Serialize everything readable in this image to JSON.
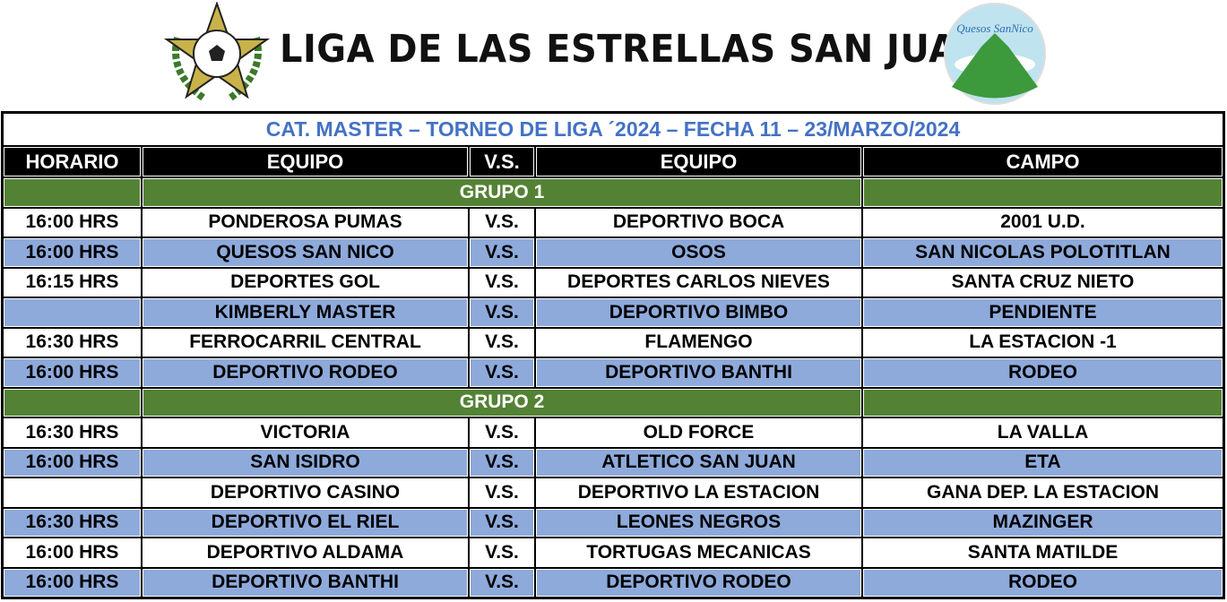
{
  "header": {
    "title": "LIGA DE LAS ESTRELLAS SAN JUAN",
    "sponsor_logo_text": "Quesos San Nico"
  },
  "caption": "CAT. MASTER – TORNEO DE LIGA ´2024 – FECHA 11 – 23/MARZO/2024",
  "columns": [
    "HORARIO",
    "EQUIPO",
    "V.S.",
    "EQUIPO",
    "CAMPO"
  ],
  "colors": {
    "caption": "#4472c4",
    "group": "#548235",
    "alt_row": "#8eaadb",
    "header": "#000000"
  },
  "groups": [
    {
      "label": "GRUPO 1",
      "rows": [
        {
          "time": "16:00 HRS",
          "home": "PONDEROSA PUMAS",
          "vs": "V.S.",
          "away": "DEPORTIVO BOCA",
          "field": "2001 U.D."
        },
        {
          "time": "16:00 HRS",
          "home": "QUESOS SAN NICO",
          "vs": "V.S.",
          "away": "OSOS",
          "field": "SAN NICOLAS POLOTITLAN"
        },
        {
          "time": "16:15 HRS",
          "home": "DEPORTES GOL",
          "vs": "V.S.",
          "away": "DEPORTES CARLOS NIEVES",
          "field": "SANTA CRUZ NIETO"
        },
        {
          "time": "",
          "home": "KIMBERLY MASTER",
          "vs": "V.S.",
          "away": "DEPORTIVO BIMBO",
          "field": "PENDIENTE"
        },
        {
          "time": "16:30 HRS",
          "home": "FERROCARRIL CENTRAL",
          "vs": "V.S.",
          "away": "FLAMENGO",
          "field": "LA ESTACION -1"
        },
        {
          "time": "16:00 HRS",
          "home": "DEPORTIVO RODEO",
          "vs": "V.S.",
          "away": "DEPORTIVO BANTHI",
          "field": "RODEO"
        }
      ]
    },
    {
      "label": "GRUPO 2",
      "rows": [
        {
          "time": "16:30 HRS",
          "home": "VICTORIA",
          "vs": "V.S.",
          "away": "OLD FORCE",
          "field": "LA VALLA"
        },
        {
          "time": "16:00 HRS",
          "home": "SAN ISIDRO",
          "vs": "V.S.",
          "away": "ATLETICO SAN JUAN",
          "field": "ETA"
        },
        {
          "time": "",
          "home": "DEPORTIVO CASINO",
          "vs": "V.S.",
          "away": "DEPORTIVO LA ESTACION",
          "field": "GANA DEP. LA ESTACION"
        },
        {
          "time": "16:30 HRS",
          "home": "DEPORTIVO EL RIEL",
          "vs": "V.S.",
          "away": "LEONES NEGROS",
          "field": "MAZINGER"
        },
        {
          "time": "16:00 HRS",
          "home": "DEPORTIVO ALDAMA",
          "vs": "V.S.",
          "away": "TORTUGAS MECANICAS",
          "field": "SANTA MATILDE"
        },
        {
          "time": "16:00 HRS",
          "home": "DEPORTIVO BANTHI",
          "vs": "V.S.",
          "away": "DEPORTIVO RODEO",
          "field": "RODEO"
        }
      ]
    }
  ]
}
